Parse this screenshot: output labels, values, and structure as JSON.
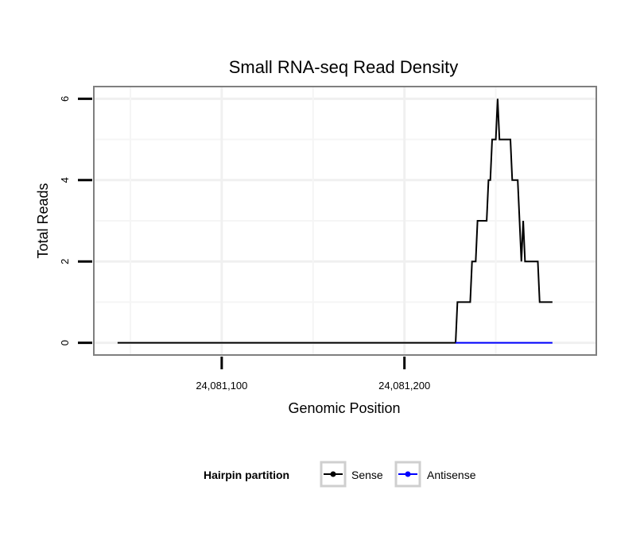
{
  "chart_data": {
    "type": "line",
    "title": "Small RNA-seq Read Density",
    "xlabel": "Genomic Position",
    "ylabel": "Total Reads",
    "xlim": [
      24081030,
      24081305
    ],
    "ylim": [
      -0.3,
      6.3
    ],
    "x_ticks": [
      {
        "value": 24081100,
        "label": "24,081,100"
      },
      {
        "value": 24081200,
        "label": "24,081,200"
      }
    ],
    "y_ticks": [
      {
        "value": 0,
        "label": "0"
      },
      {
        "value": 2,
        "label": "2"
      },
      {
        "value": 4,
        "label": "4"
      },
      {
        "value": 6,
        "label": "6"
      }
    ],
    "grid": true,
    "legend": {
      "title": "Hairpin partition",
      "position": "bottom",
      "entries": [
        "Sense",
        "Antisense"
      ]
    },
    "series": [
      {
        "name": "Sense",
        "color": "#000000",
        "points": [
          [
            24081043,
            0
          ],
          [
            24081228,
            0
          ],
          [
            24081229,
            1
          ],
          [
            24081236,
            1
          ],
          [
            24081237,
            2
          ],
          [
            24081239,
            2
          ],
          [
            24081240,
            3
          ],
          [
            24081245,
            3
          ],
          [
            24081246,
            4
          ],
          [
            24081247,
            4
          ],
          [
            24081248,
            5
          ],
          [
            24081250,
            5
          ],
          [
            24081251,
            6
          ],
          [
            24081252,
            5
          ],
          [
            24081258,
            5
          ],
          [
            24081259,
            4
          ],
          [
            24081262,
            4
          ],
          [
            24081264,
            2
          ],
          [
            24081265,
            3
          ],
          [
            24081266,
            2
          ],
          [
            24081273,
            2
          ],
          [
            24081274,
            1
          ],
          [
            24081281,
            1
          ]
        ]
      },
      {
        "name": "Antisense",
        "color": "#0000ff",
        "points": [
          [
            24081228,
            0
          ],
          [
            24081281,
            0
          ]
        ]
      }
    ]
  }
}
